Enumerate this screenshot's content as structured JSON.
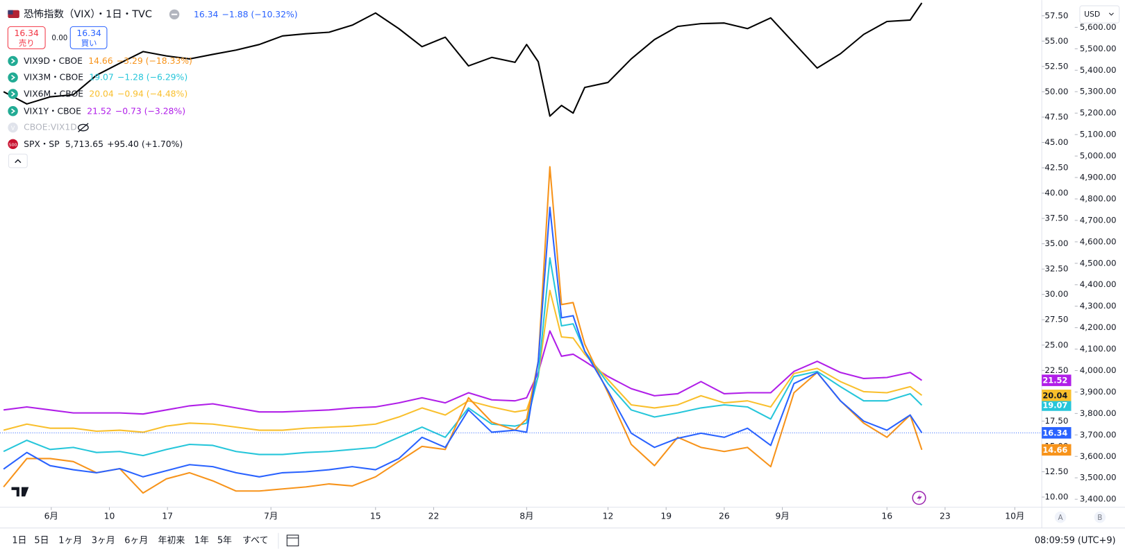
{
  "chart_data": {
    "type": "line",
    "x": [
      0,
      2,
      4,
      6,
      8,
      10,
      12,
      14,
      16,
      18,
      20,
      22,
      24,
      26,
      28,
      30,
      32,
      34,
      36,
      38,
      40,
      42,
      44,
      45,
      46,
      47,
      48,
      49,
      50,
      52,
      54,
      56,
      58,
      60,
      62,
      64,
      66,
      68,
      70,
      72,
      74,
      76,
      78,
      79
    ],
    "xlim": [
      -0.31,
      89.32
    ],
    "xticks": [
      {
        "value": 4.1,
        "label": "6月"
      },
      {
        "value": 9.1,
        "label": "10"
      },
      {
        "value": 14.1,
        "label": "17"
      },
      {
        "value": 23,
        "label": "7月"
      },
      {
        "value": 32,
        "label": "15"
      },
      {
        "value": 37,
        "label": "22"
      },
      {
        "value": 45,
        "label": "8月"
      },
      {
        "value": 52,
        "label": "12"
      },
      {
        "value": 57,
        "label": "19"
      },
      {
        "value": 62,
        "label": "26"
      },
      {
        "value": 67,
        "label": "9月"
      },
      {
        "value": 76,
        "label": "16"
      },
      {
        "value": 81,
        "label": "23"
      },
      {
        "value": 87,
        "label": "10月"
      }
    ],
    "ylim": [
      9.0,
      59.05
    ],
    "yticks": [
      {
        "value": 10,
        "label": "10.00"
      },
      {
        "value": 12.5,
        "label": "12.50"
      },
      {
        "value": 15,
        "label": "15.00"
      },
      {
        "value": 17.5,
        "label": "17.50"
      },
      {
        "value": 20,
        "label": "20.00"
      },
      {
        "value": 22.5,
        "label": "22.50"
      },
      {
        "value": 25,
        "label": "25.00"
      },
      {
        "value": 27.5,
        "label": "27.50"
      },
      {
        "value": 30,
        "label": "30.00"
      },
      {
        "value": 32.5,
        "label": "32.50"
      },
      {
        "value": 35,
        "label": "35.00"
      },
      {
        "value": 37.5,
        "label": "37.50"
      },
      {
        "value": 40,
        "label": "40.00"
      },
      {
        "value": 42.5,
        "label": "42.50"
      },
      {
        "value": 45,
        "label": "45.00"
      },
      {
        "value": 47.5,
        "label": "47.50"
      },
      {
        "value": 50,
        "label": "50.00"
      },
      {
        "value": 52.5,
        "label": "52.50"
      },
      {
        "value": 55,
        "label": "55.00"
      },
      {
        "value": 57.5,
        "label": "57.50"
      }
    ],
    "y2lim": [
      3363,
      5727
    ],
    "y2ticks": [
      {
        "value": 3400,
        "label": "3,400.00"
      },
      {
        "value": 3500,
        "label": "3,500.00"
      },
      {
        "value": 3600,
        "label": "3,600.00"
      },
      {
        "value": 3700,
        "label": "3,700.00"
      },
      {
        "value": 3800,
        "label": "3,800.00"
      },
      {
        "value": 3900,
        "label": "3,900.00"
      },
      {
        "value": 4000,
        "label": "4,000.00"
      },
      {
        "value": 4100,
        "label": "4,100.00"
      },
      {
        "value": 4200,
        "label": "4,200.00"
      },
      {
        "value": 4300,
        "label": "4,300.00"
      },
      {
        "value": 4400,
        "label": "4,400.00"
      },
      {
        "value": 4500,
        "label": "4,500.00"
      },
      {
        "value": 4600,
        "label": "4,600.00"
      },
      {
        "value": 4700,
        "label": "4,700.00"
      },
      {
        "value": 4800,
        "label": "4,800.00"
      },
      {
        "value": 4900,
        "label": "4,900.00"
      },
      {
        "value": 5000,
        "label": "5,000.00"
      },
      {
        "value": 5100,
        "label": "5,100.00"
      },
      {
        "value": 5200,
        "label": "5,200.00"
      },
      {
        "value": 5300,
        "label": "5,300.00"
      },
      {
        "value": 5400,
        "label": "5,400.00"
      },
      {
        "value": 5500,
        "label": "5,500.00"
      },
      {
        "value": 5600,
        "label": "5,600.00"
      }
    ],
    "grid": false,
    "header": {
      "sell": {
        "price": "16.34",
        "label": "売り"
      },
      "spread": "0.00",
      "buy": {
        "price": "16.34",
        "label": "買い"
      }
    },
    "series": [
      {
        "name": "恐怖指数（VIX）・1日・TVC",
        "color": "#2962ff",
        "change": "−1.88 (−10.32%)",
        "values": [
          12.76,
          14.4,
          13.1,
          12.7,
          12.4,
          12.8,
          12.0,
          12.6,
          13.2,
          13.0,
          12.4,
          12.0,
          12.4,
          12.5,
          12.7,
          13.0,
          12.7,
          13.8,
          15.9,
          14.9,
          18.6,
          16.4,
          16.6,
          16.4,
          23.4,
          38.6,
          27.7,
          27.9,
          24.4,
          20.5,
          16.3,
          14.9,
          15.8,
          16.3,
          15.9,
          16.8,
          15.1,
          21.2,
          22.3,
          19.5,
          17.5,
          16.6,
          18.1,
          16.34
        ]
      },
      {
        "name": "VIX9D・CBOE",
        "color": "#f7931a",
        "change": "−3.29 (−18.33%)",
        "values": [
          11.0,
          13.8,
          13.8,
          13.5,
          12.4,
          12.8,
          10.4,
          11.8,
          12.4,
          11.6,
          10.6,
          10.6,
          10.8,
          11.0,
          11.3,
          11.1,
          12.0,
          13.5,
          15.0,
          14.7,
          19.8,
          17.4,
          16.6,
          17.7,
          23.4,
          42.6,
          29.0,
          29.2,
          25.1,
          20.3,
          15.2,
          13.1,
          15.9,
          14.9,
          14.5,
          14.9,
          13.0,
          20.3,
          22.3,
          19.5,
          17.3,
          15.9,
          18.1,
          14.66
        ]
      },
      {
        "name": "VIX3M・CBOE",
        "color": "#26c6da",
        "change": "−1.28 (−6.29%)",
        "values": [
          14.5,
          15.6,
          14.7,
          14.9,
          14.4,
          14.5,
          14.1,
          14.7,
          15.2,
          15.1,
          14.5,
          14.2,
          14.2,
          14.4,
          14.5,
          14.7,
          14.9,
          15.9,
          16.9,
          15.9,
          18.8,
          17.2,
          17.0,
          17.3,
          22.0,
          33.6,
          26.9,
          27.1,
          24.4,
          21.2,
          18.6,
          17.9,
          18.3,
          18.8,
          19.1,
          18.9,
          17.7,
          21.9,
          22.4,
          20.9,
          19.5,
          19.5,
          20.2,
          19.07
        ]
      },
      {
        "name": "VIX6M・CBOE",
        "color": "#f9bf2c",
        "change": "−0.94 (−4.48%)",
        "values": [
          16.6,
          17.2,
          16.8,
          16.8,
          16.5,
          16.6,
          16.4,
          17.0,
          17.3,
          17.2,
          16.9,
          16.6,
          16.6,
          16.8,
          16.9,
          17.0,
          17.2,
          17.9,
          18.8,
          18.1,
          19.5,
          18.9,
          18.4,
          18.6,
          21.9,
          30.4,
          25.8,
          25.7,
          24.1,
          21.6,
          19.1,
          18.8,
          19.1,
          20.0,
          19.3,
          19.5,
          18.9,
          22.2,
          22.7,
          21.4,
          20.4,
          20.3,
          20.9,
          20.04
        ]
      },
      {
        "name": "VIX1Y・CBOE",
        "color": "#b01ee8",
        "change": "−0.73 (−3.28%)",
        "values": [
          18.6,
          18.9,
          18.6,
          18.3,
          18.3,
          18.3,
          18.2,
          18.6,
          19.0,
          19.2,
          18.8,
          18.4,
          18.4,
          18.5,
          18.6,
          18.8,
          18.9,
          19.3,
          19.8,
          19.3,
          20.3,
          19.6,
          19.5,
          19.8,
          22.3,
          26.4,
          23.9,
          24.1,
          23.4,
          21.9,
          20.7,
          20.0,
          20.2,
          21.4,
          20.2,
          20.3,
          20.3,
          22.4,
          23.4,
          22.3,
          21.7,
          21.8,
          22.3,
          21.52
        ]
      },
      {
        "name": "SPX・SP",
        "color": "#000000",
        "axis": "y2",
        "change": "+95.40 (+1.70%)",
        "last_label": "5,713.65",
        "icon": "500",
        "values": [
          5300,
          5243,
          5276,
          5286,
          5377,
          5433,
          5487,
          5467,
          5453,
          5474,
          5494,
          5520,
          5560,
          5570,
          5577,
          5610,
          5667,
          5594,
          5510,
          5554,
          5420,
          5460,
          5437,
          5520,
          5440,
          5186,
          5236,
          5200,
          5320,
          5343,
          5453,
          5543,
          5604,
          5617,
          5620,
          5594,
          5644,
          5527,
          5410,
          5477,
          5567,
          5627,
          5634,
          5713.65
        ]
      }
    ]
  },
  "hidden_series": {
    "icon": "V",
    "name": "CBOE:VIX1D"
  },
  "currency": "USD",
  "axis_names": [
    "A",
    "B"
  ],
  "toolbar": {
    "ranges": [
      "1日",
      "5日",
      "1ヶ月",
      "3ヶ月",
      "6ヶ月",
      "年初来",
      "1年",
      "5年",
      "すべて"
    ],
    "clock": "08:09:59 (UTC+9)"
  }
}
